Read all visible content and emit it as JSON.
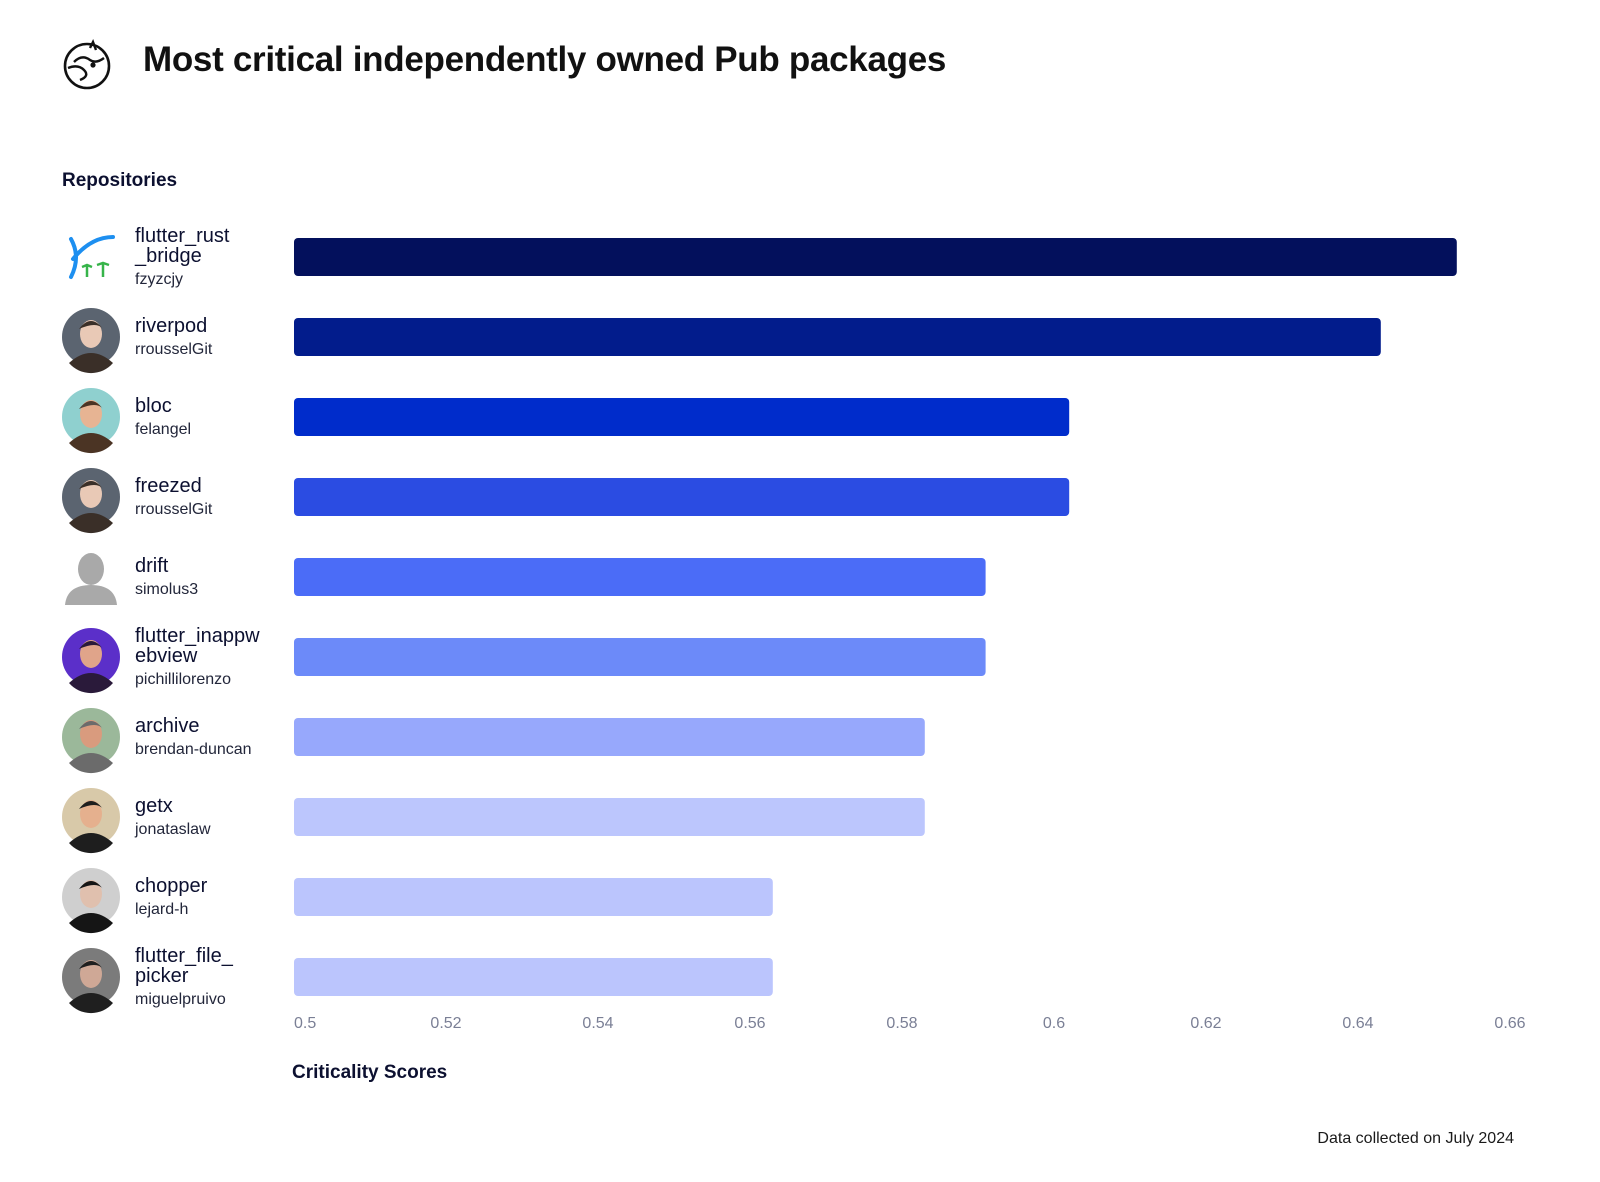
{
  "title": "Most critical independently owned Pub packages",
  "logo_icon": "dart-dodo-logo-icon",
  "y_heading": "Repositories",
  "x_heading": "Criticality Scores",
  "footnote": "Data collected on July 2024",
  "chart_data": {
    "type": "bar",
    "orientation": "horizontal",
    "title": "Most critical independently owned Pub packages",
    "xlabel": "Criticality Scores",
    "ylabel": "Repositories",
    "xlim": [
      0.5,
      0.66
    ],
    "xticks": [
      "0.5",
      "0.52",
      "0.54",
      "0.56",
      "0.58",
      "0.6",
      "0.62",
      "0.64",
      "0.66"
    ],
    "grid": false,
    "categories": [
      {
        "name_lines": [
          "flutter_rust",
          "_bridge"
        ],
        "owner": "fzyzcjy",
        "avatar": "flutter-rust-bridge-logo-icon"
      },
      {
        "name_lines": [
          "riverpod"
        ],
        "owner": "rrousselGit",
        "avatar": "user-avatar"
      },
      {
        "name_lines": [
          "bloc"
        ],
        "owner": "felangel",
        "avatar": "user-avatar"
      },
      {
        "name_lines": [
          "freezed"
        ],
        "owner": "rrousselGit",
        "avatar": "user-avatar"
      },
      {
        "name_lines": [
          "drift"
        ],
        "owner": "simolus3",
        "avatar": "default-avatar-icon"
      },
      {
        "name_lines": [
          "flutter_inappw",
          "ebview"
        ],
        "owner": "pichillilorenzo",
        "avatar": "user-avatar"
      },
      {
        "name_lines": [
          "archive"
        ],
        "owner": "brendan-duncan",
        "avatar": "user-avatar"
      },
      {
        "name_lines": [
          "getx"
        ],
        "owner": "jonataslaw",
        "avatar": "user-avatar"
      },
      {
        "name_lines": [
          "chopper"
        ],
        "owner": "lejard-h",
        "avatar": "user-avatar"
      },
      {
        "name_lines": [
          "flutter_file_",
          "picker"
        ],
        "owner": "miguelpruivo",
        "avatar": "user-avatar"
      }
    ],
    "values": [
      0.653,
      0.643,
      0.602,
      0.602,
      0.591,
      0.591,
      0.583,
      0.583,
      0.563,
      0.563
    ],
    "colors": [
      "#03105c",
      "#021c8c",
      "#002ccb",
      "#2b4ce2",
      "#4b6cf7",
      "#6c8af9",
      "#97a8fc",
      "#bcc6fd",
      "#bbc5fd",
      "#bbc5fd"
    ]
  }
}
